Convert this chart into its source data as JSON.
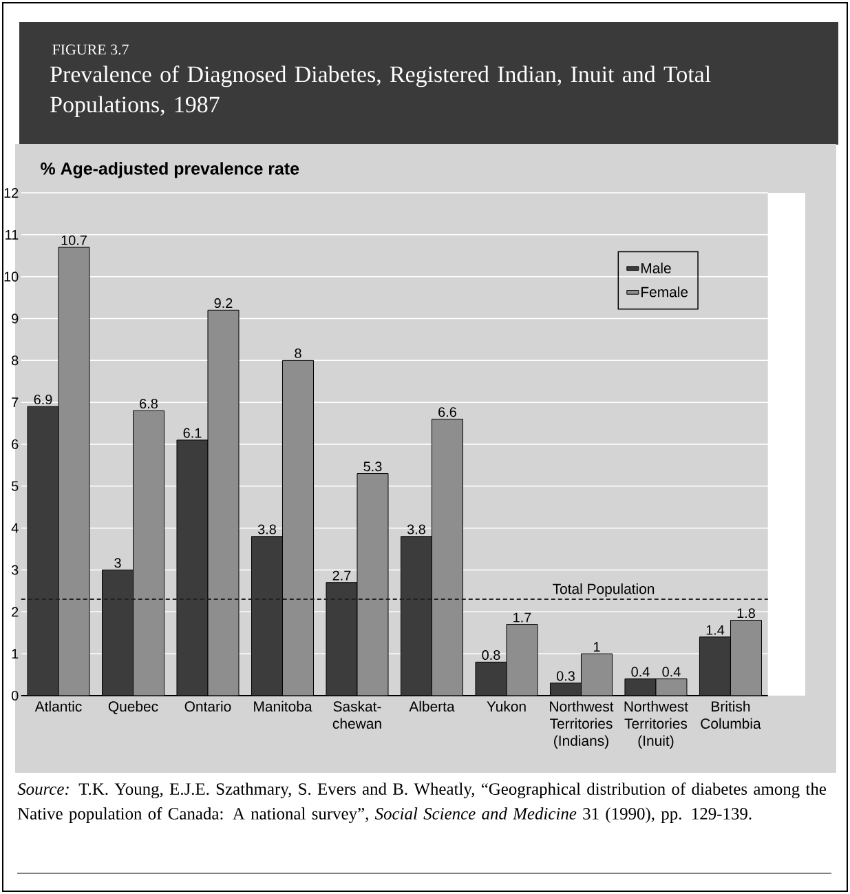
{
  "chart_data": {
    "type": "bar",
    "subtitle": "FIGURE 3.7",
    "title": "Prevalence of Diagnosed Diabetes, Registered Indian, Inuit and Total Populations, 1987",
    "ylabel": "% Age-adjusted prevalence rate",
    "categories": [
      "Atlantic",
      "Quebec",
      "Ontario",
      "Manitoba",
      "Saskat-chewan",
      "Alberta",
      "Yukon",
      "Northwest Territories (Indians)",
      "Northwest Territories (Inuit)",
      "British Columbia"
    ],
    "series": [
      {
        "name": "Male",
        "color": "#3c3c3c",
        "values": [
          6.9,
          3,
          6.1,
          3.8,
          2.7,
          3.8,
          0.8,
          0.3,
          0.4,
          1.4
        ]
      },
      {
        "name": "Female",
        "color": "#8e8e8e",
        "values": [
          10.7,
          6.8,
          9.2,
          8,
          5.3,
          6.6,
          1.7,
          1,
          0.4,
          1.8
        ]
      }
    ],
    "ylim": [
      0,
      12
    ],
    "yticks": [
      0,
      1,
      2,
      3,
      4,
      5,
      6,
      7,
      8,
      9,
      10,
      11,
      12
    ],
    "grid": "y",
    "legend": "top right",
    "data_labels": true,
    "ref_lines": [
      {
        "axis": "y",
        "value": 2.3,
        "label": "Total Population",
        "line_style": "dashed",
        "color": "#222222"
      }
    ],
    "annotations": [
      "*Source:* T.K. Young, E.J.E. Szathmary, S. Evers and B. Wheatly, “Geographical distribution of diabetes among the Native population of Canada: A national survey”, *Social Science and Medicine* 31 (1990), pp. 129-139."
    ]
  }
}
